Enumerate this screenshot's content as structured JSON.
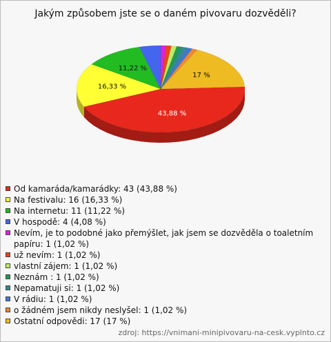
{
  "chart_data": {
    "type": "pie3d",
    "title": "Jakým způsobem jste se o daném pivovaru dozvěděli?",
    "categories": [
      "Od kamaráda/kamarádky: 43 (43,88 %)",
      "Na festivalu: 16 (16,33 %)",
      "Na internetu: 11 (11,22 %)",
      "V hospodě: 4 (4,08 %)",
      "Nevím, je to podobné jako přemýšlet, jak jsem se dozvěděla o toaletním papíru: 1 (1,02 %)",
      "už nevím: 1 (1,02 %)",
      "vlastní zájem: 1 (1,02 %)",
      "Neznám : 1 (1,02 %)",
      "Nepamatuji si: 1 (1,02 %)",
      "V rádiu: 1 (1,02 %)",
      "o žádném jsem nikdy neslyšel: 1 (1,02 %)",
      "Ostatní odpovědi: 17 (17 %)"
    ],
    "values": [
      43.88,
      16.33,
      11.22,
      4.08,
      1.02,
      1.02,
      1.02,
      1.02,
      1.02,
      1.02,
      1.02,
      17
    ],
    "value_labels": [
      "43,88 %",
      "16,33 %",
      "11,22 %",
      null,
      null,
      null,
      null,
      null,
      null,
      null,
      null,
      "17 %"
    ],
    "colors": [
      "#e8281c",
      "#ffff33",
      "#22bb22",
      "#4466ee",
      "#dd22dd",
      "#ee4411",
      "#bbee66",
      "#229955",
      "#338899",
      "#4477cc",
      "#ee8833",
      "#eebb22"
    ],
    "source": "zdroj: https://vnimani-minipivovaru-na-cesk.vyplnto.cz"
  }
}
